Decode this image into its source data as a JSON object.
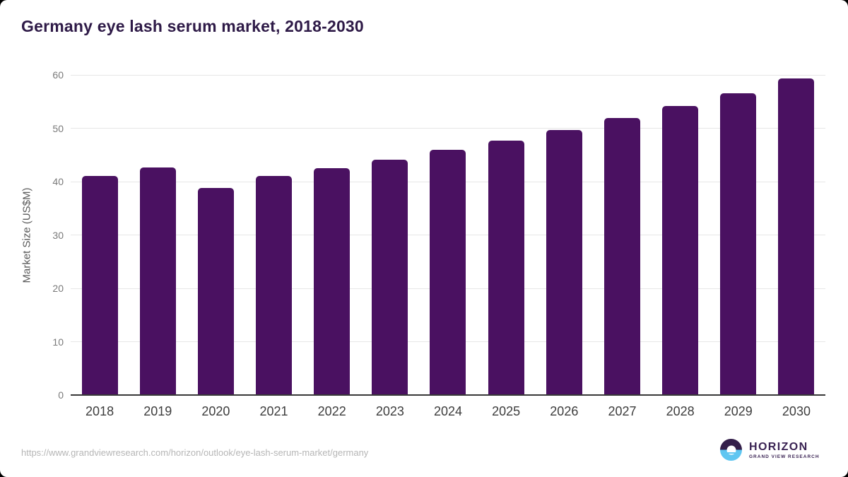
{
  "title": "Germany eye lash serum market, 2018-2030",
  "chart_data": {
    "type": "bar",
    "title": "Germany eye lash serum market, 2018-2030",
    "categories": [
      "2018",
      "2019",
      "2020",
      "2021",
      "2022",
      "2023",
      "2024",
      "2025",
      "2026",
      "2027",
      "2028",
      "2029",
      "2030"
    ],
    "values": [
      41.1,
      42.7,
      38.8,
      41.1,
      42.5,
      44.1,
      45.9,
      47.7,
      49.7,
      51.9,
      54.2,
      56.6,
      59.4
    ],
    "xlabel": "",
    "ylabel": "Market Size (US$M)",
    "ylim": [
      0,
      60
    ],
    "yticks": [
      0,
      10,
      20,
      30,
      40,
      50,
      60
    ],
    "grid": true,
    "legend": "none",
    "bar_color": "#4a1161"
  },
  "colors": {
    "bar": "#4a1161",
    "title_text": "#2e1a47",
    "gridline": "#e7e7e7",
    "axis_line": "#383838",
    "y_tick_text": "#7a7a7a",
    "x_tick_text": "#3d3d3d",
    "url_text": "#b6b6b6",
    "logo_purple": "#35204b",
    "logo_blue": "#5fc6f1",
    "logo_text": "#3a2353"
  },
  "footer": {
    "source_url": "https://www.grandviewresearch.com/horizon/outlook/eye-lash-serum-market/germany",
    "logo": {
      "title": "HORIZON",
      "subtitle": "GRAND VIEW RESEARCH"
    }
  }
}
